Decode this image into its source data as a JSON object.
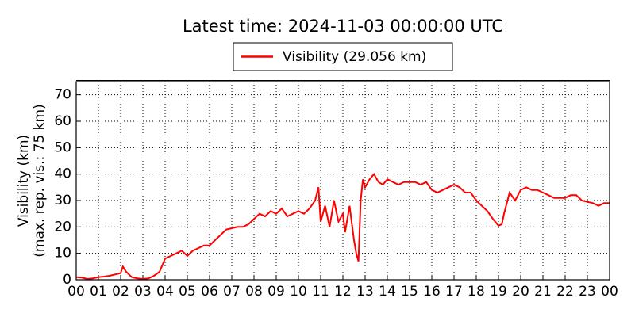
{
  "chart_data": {
    "type": "line",
    "title": "Latest time: 2024-11-03 00:00:00 UTC",
    "ylabel": [
      "Visibility (km)",
      "(max. rep. vis.: 75 km)"
    ],
    "legend": "upper center",
    "grid": true,
    "xlim": [
      0,
      24
    ],
    "ylim": [
      0,
      75
    ],
    "xticks": [
      {
        "value": 0,
        "label": "00"
      },
      {
        "value": 1,
        "label": "01"
      },
      {
        "value": 2,
        "label": "02"
      },
      {
        "value": 3,
        "label": "03"
      },
      {
        "value": 4,
        "label": "04"
      },
      {
        "value": 5,
        "label": "05"
      },
      {
        "value": 6,
        "label": "06"
      },
      {
        "value": 7,
        "label": "07"
      },
      {
        "value": 8,
        "label": "08"
      },
      {
        "value": 9,
        "label": "09"
      },
      {
        "value": 10,
        "label": "10"
      },
      {
        "value": 11,
        "label": "11"
      },
      {
        "value": 12,
        "label": "12"
      },
      {
        "value": 13,
        "label": "13"
      },
      {
        "value": 14,
        "label": "14"
      },
      {
        "value": 15,
        "label": "15"
      },
      {
        "value": 16,
        "label": "16"
      },
      {
        "value": 17,
        "label": "17"
      },
      {
        "value": 18,
        "label": "18"
      },
      {
        "value": 19,
        "label": "19"
      },
      {
        "value": 20,
        "label": "20"
      },
      {
        "value": 21,
        "label": "21"
      },
      {
        "value": 22,
        "label": "22"
      },
      {
        "value": 23,
        "label": "23"
      },
      {
        "value": 24,
        "label": "00"
      }
    ],
    "yticks": [
      0,
      10,
      20,
      30,
      40,
      50,
      60,
      70
    ],
    "x": [
      0,
      0.25,
      0.5,
      0.75,
      1,
      1.25,
      1.5,
      1.75,
      2,
      2.1,
      2.25,
      2.5,
      2.75,
      3,
      3.25,
      3.5,
      3.75,
      4,
      4.25,
      4.5,
      4.75,
      5,
      5.25,
      5.5,
      5.75,
      6,
      6.25,
      6.5,
      6.75,
      7,
      7.25,
      7.5,
      7.75,
      8,
      8.25,
      8.5,
      8.75,
      9,
      9.25,
      9.5,
      9.75,
      10,
      10.25,
      10.5,
      10.75,
      10.9,
      11,
      11.2,
      11.4,
      11.6,
      11.8,
      12,
      12.1,
      12.3,
      12.5,
      12.6,
      12.7,
      12.8,
      12.9,
      13,
      13.2,
      13.4,
      13.6,
      13.8,
      14,
      14.25,
      14.5,
      14.75,
      15,
      15.25,
      15.5,
      15.75,
      16,
      16.25,
      16.5,
      16.75,
      17,
      17.25,
      17.5,
      17.75,
      18,
      18.25,
      18.5,
      18.75,
      19,
      19.15,
      19.25,
      19.5,
      19.75,
      20,
      20.25,
      20.5,
      20.75,
      21,
      21.25,
      21.5,
      21.75,
      22,
      22.25,
      22.5,
      22.75,
      23,
      23.25,
      23.5,
      23.75,
      24
    ],
    "series": [
      {
        "name": "Visibility (29.056 km)",
        "color": "#ff0000",
        "values": [
          1,
          0.8,
          0.3,
          0.5,
          1,
          1.2,
          1.5,
          2,
          2.5,
          5,
          3,
          1,
          0.5,
          0.3,
          0.5,
          1.5,
          3,
          8,
          9,
          10,
          11,
          9,
          11,
          12,
          13,
          13,
          15,
          17,
          19,
          19.5,
          20,
          20,
          21,
          23,
          25,
          24,
          26,
          25,
          27,
          24,
          25,
          26,
          25,
          27,
          30,
          35,
          22,
          28,
          20,
          30,
          22,
          25,
          18,
          28,
          15,
          10,
          7,
          30,
          38,
          35,
          38,
          40,
          37,
          36,
          38,
          37,
          36,
          37,
          37,
          37,
          36,
          37,
          34,
          33,
          34,
          35,
          36,
          35,
          33,
          33,
          30,
          28,
          26,
          23,
          20.5,
          21,
          25,
          33,
          30,
          34,
          35,
          34,
          34,
          33,
          32,
          31,
          31,
          31,
          32,
          32,
          30,
          29.5,
          29,
          28,
          29,
          29
        ]
      }
    ]
  }
}
